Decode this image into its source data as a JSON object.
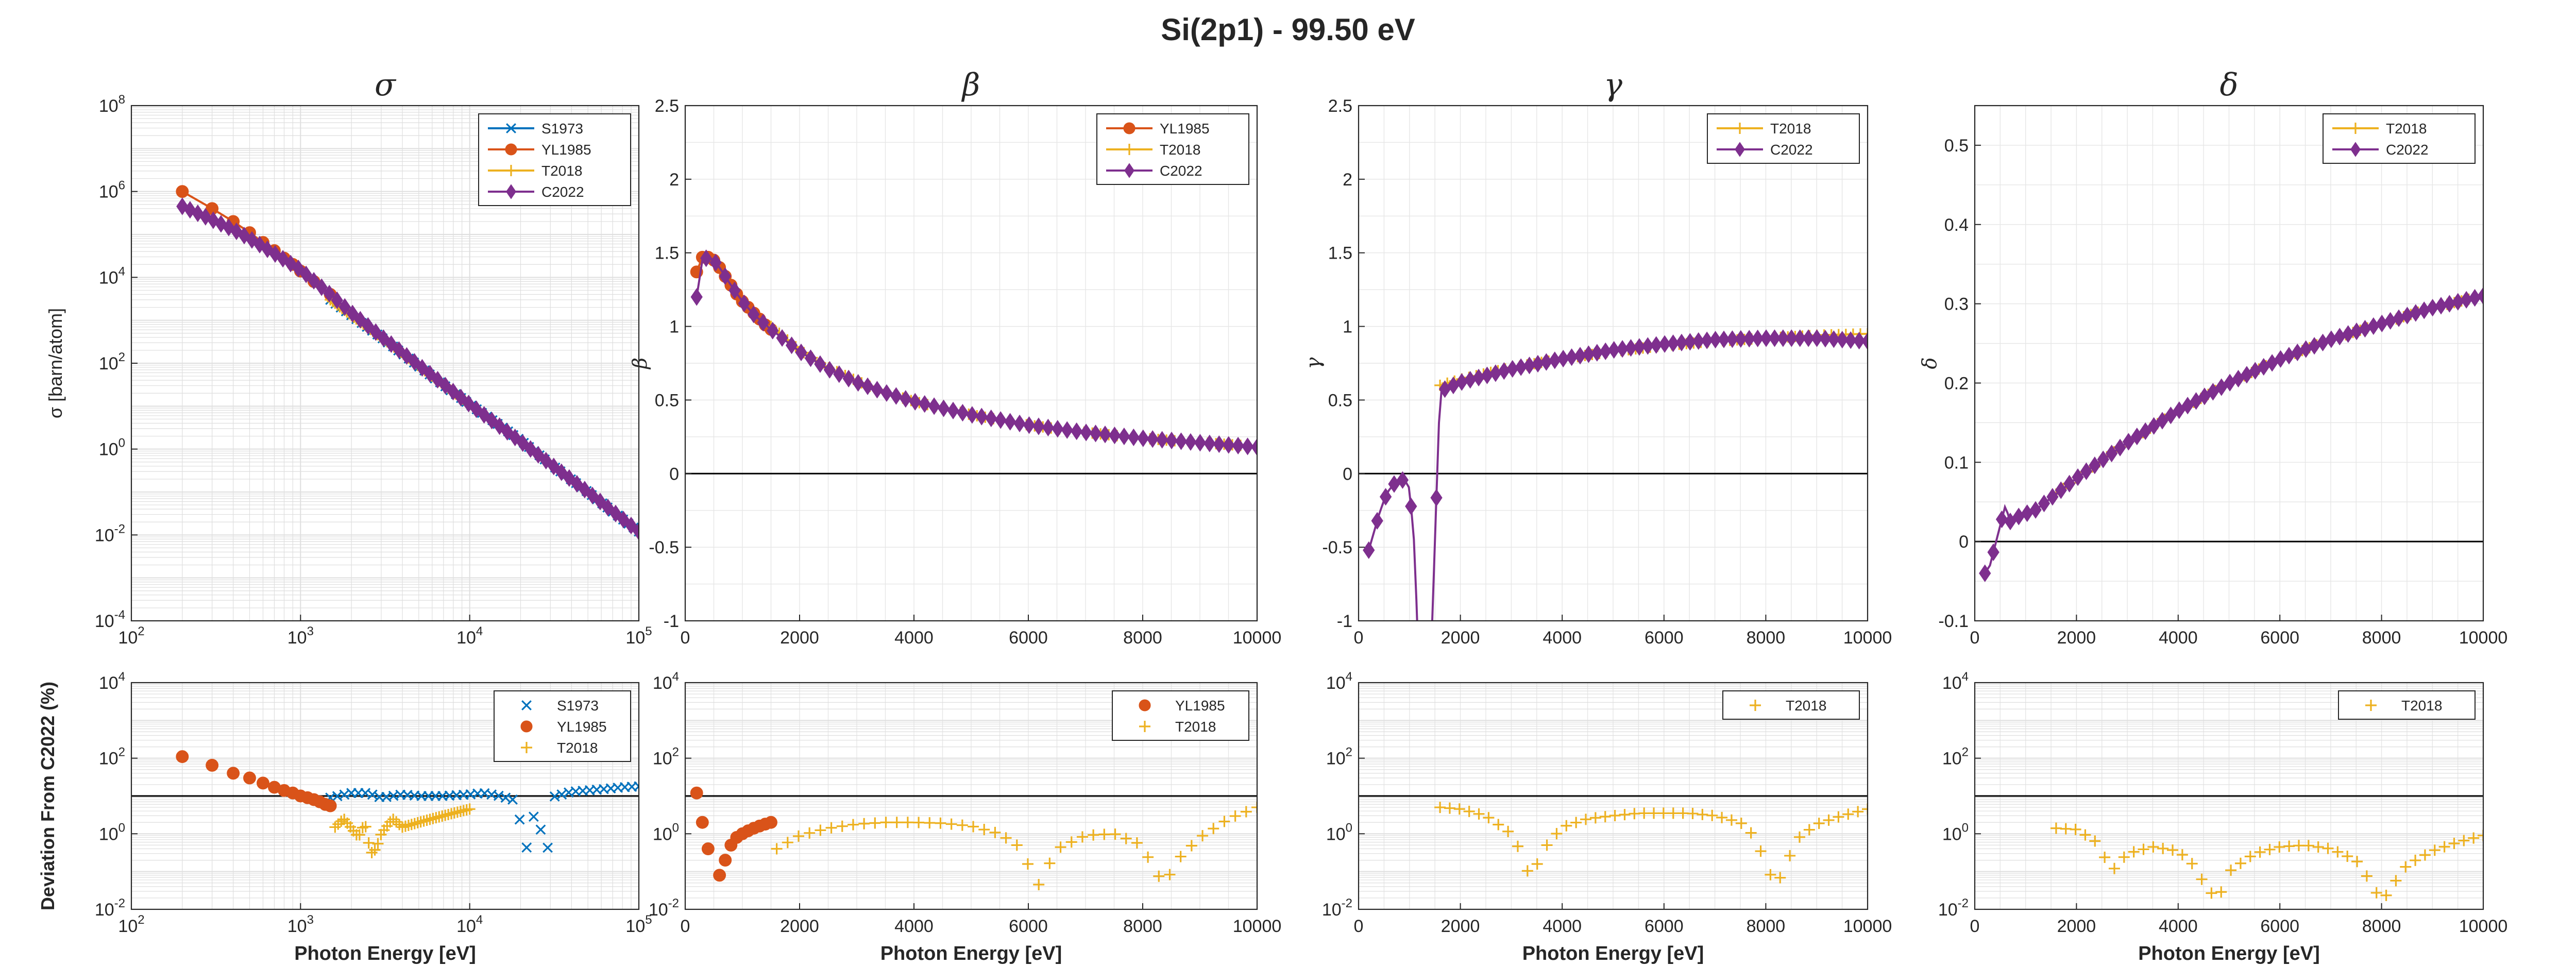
{
  "figure": {
    "title": "Si(2p1) - 99.50 eV",
    "x_label": "Photon Energy [eV]",
    "bottom_y_label": "Deviation From C2022 (%)",
    "colors": {
      "S1973": "#0072BD",
      "YL1985": "#D95319",
      "T2018": "#EDB120",
      "C2022": "#7E2F8E",
      "axis": "#262626",
      "zero_line": "#000000"
    }
  },
  "chart_data": [
    {
      "id": "sigma",
      "type": "line",
      "title": "σ",
      "ylabel": "σ [barn/atom]",
      "xscale": "log",
      "yscale": "log",
      "xlim": [
        100,
        100000
      ],
      "ylim": [
        0.0001,
        100000000
      ],
      "xticks": [
        100,
        1000,
        10000,
        100000
      ],
      "xtick_labels": [
        "10^2",
        "10^3",
        "10^4",
        "10^5"
      ],
      "yticks": [
        0.0001,
        0.01,
        1,
        100,
        10000,
        1000000,
        100000000
      ],
      "ytick_labels": [
        "10^-4",
        "10^-2",
        "10^0",
        "10^2",
        "10^4",
        "10^6",
        "10^8"
      ],
      "grid": true,
      "legend": "top-right",
      "zero_line": false,
      "series": [
        {
          "name": "S1973",
          "marker": "x",
          "x": [
            1500,
            2000,
            3000,
            5000,
            8000,
            10000,
            15000,
            20000,
            30000,
            50000,
            70000,
            100000
          ],
          "y": [
            3000,
            1300,
            400,
            85,
            21,
            11,
            3.6,
            1.6,
            0.45,
            0.1,
            0.035,
            0.012
          ],
          "dense_markers": true
        },
        {
          "name": "YL1985",
          "marker": "o",
          "x": [
            200,
            300,
            400,
            500,
            600,
            700,
            800,
            900,
            1000,
            1200,
            1500
          ],
          "y": [
            1000000,
            400000,
            200000,
            110000,
            65000,
            42000,
            28000,
            20000,
            14000,
            8000,
            4000
          ]
        },
        {
          "name": "T2018",
          "marker": "+",
          "x": [
            1500,
            2000,
            3000,
            4000,
            5000,
            6000,
            7000,
            8000,
            9000,
            10000
          ],
          "y": [
            3000,
            1300,
            400,
            170,
            85,
            50,
            32,
            21,
            15,
            11
          ],
          "dense_markers": true
        },
        {
          "name": "C2022",
          "marker": "diamond",
          "x": [
            200,
            300,
            400,
            500,
            600,
            700,
            800,
            1000,
            1500,
            2000,
            3000,
            5000,
            10000,
            20000,
            30000,
            50000,
            100000
          ],
          "y": [
            450000,
            220000,
            130000,
            80000,
            52000,
            36000,
            26000,
            15000,
            4000,
            1500,
            420,
            90,
            11,
            1.5,
            0.45,
            0.1,
            0.012
          ],
          "dense_markers": true
        }
      ]
    },
    {
      "id": "beta",
      "type": "line",
      "title": "β",
      "ylabel": "β",
      "xscale": "linear",
      "yscale": "linear",
      "xlim": [
        0,
        10000
      ],
      "ylim": [
        -1,
        2.5
      ],
      "xticks": [
        0,
        2000,
        4000,
        6000,
        8000,
        10000
      ],
      "xtick_labels": [
        "0",
        "2000",
        "4000",
        "6000",
        "8000",
        "10000"
      ],
      "yticks": [
        -1,
        -0.5,
        0,
        0.5,
        1,
        1.5,
        2,
        2.5
      ],
      "ytick_labels": [
        "-1",
        "-0.5",
        "0",
        "0.5",
        "1",
        "1.5",
        "2",
        "2.5"
      ],
      "grid": true,
      "legend": "top-right",
      "zero_line": true,
      "series": [
        {
          "name": "YL1985",
          "marker": "o",
          "x": [
            200,
            300,
            400,
            500,
            600,
            700,
            800,
            900,
            1000,
            1100,
            1200,
            1300,
            1400,
            1500
          ],
          "y": [
            1.37,
            1.47,
            1.47,
            1.45,
            1.4,
            1.34,
            1.28,
            1.22,
            1.17,
            1.13,
            1.09,
            1.05,
            1.01,
            0.98
          ]
        },
        {
          "name": "T2018",
          "marker": "+",
          "x": [
            1500,
            2000,
            2500,
            3000,
            3500,
            4000,
            5000,
            6000,
            7000,
            8000,
            9000,
            10000
          ],
          "y": [
            1.0,
            0.84,
            0.72,
            0.63,
            0.55,
            0.49,
            0.4,
            0.33,
            0.28,
            0.24,
            0.21,
            0.185
          ],
          "dense_markers": true
        },
        {
          "name": "C2022",
          "marker": "diamond",
          "x": [
            200,
            300,
            400,
            500,
            600,
            800,
            1000,
            1200,
            1500,
            2000,
            2500,
            3000,
            3500,
            4000,
            5000,
            6000,
            7000,
            8000,
            9000,
            10000
          ],
          "y": [
            1.2,
            1.45,
            1.47,
            1.45,
            1.4,
            1.28,
            1.17,
            1.08,
            0.98,
            0.83,
            0.71,
            0.62,
            0.55,
            0.49,
            0.4,
            0.33,
            0.28,
            0.24,
            0.21,
            0.18
          ],
          "dense_markers": true
        }
      ]
    },
    {
      "id": "gamma",
      "type": "line",
      "title": "γ",
      "ylabel": "γ",
      "xscale": "linear",
      "yscale": "linear",
      "xlim": [
        0,
        10000
      ],
      "ylim": [
        -1,
        2.5
      ],
      "xticks": [
        0,
        2000,
        4000,
        6000,
        8000,
        10000
      ],
      "xtick_labels": [
        "0",
        "2000",
        "4000",
        "6000",
        "8000",
        "10000"
      ],
      "yticks": [
        -1,
        -0.5,
        0,
        0.5,
        1,
        1.5,
        2,
        2.5
      ],
      "ytick_labels": [
        "-1",
        "-0.5",
        "0",
        "0.5",
        "1",
        "1.5",
        "2",
        "2.5"
      ],
      "grid": true,
      "legend": "top-right",
      "zero_line": true,
      "series": [
        {
          "name": "T2018",
          "marker": "+",
          "x": [
            1600,
            2000,
            3000,
            4000,
            5000,
            6000,
            7000,
            8000,
            9000,
            10000
          ],
          "y": [
            0.6,
            0.64,
            0.72,
            0.78,
            0.83,
            0.87,
            0.9,
            0.92,
            0.94,
            0.95
          ],
          "dense_markers": true
        },
        {
          "name": "C2022",
          "marker": "diamond",
          "x": [
            200,
            300,
            400,
            500,
            600,
            700,
            800,
            900,
            1000,
            1100,
            1200,
            1250,
            1600,
            2000,
            3000,
            4000,
            5000,
            6000,
            7000,
            8000,
            9000,
            10000
          ],
          "y": [
            -0.52,
            -0.4,
            -0.28,
            -0.18,
            -0.11,
            -0.07,
            -0.05,
            -0.04,
            -0.1,
            -0.5,
            -1.5,
            -3,
            0.56,
            0.62,
            0.71,
            0.78,
            0.84,
            0.88,
            0.91,
            0.92,
            0.92,
            0.9
          ],
          "dense_markers": true
        }
      ]
    },
    {
      "id": "delta",
      "type": "line",
      "title": "δ",
      "ylabel": "δ",
      "xscale": "linear",
      "yscale": "linear",
      "xlim": [
        0,
        10000
      ],
      "ylim": [
        -0.1,
        0.55
      ],
      "xticks": [
        0,
        2000,
        4000,
        6000,
        8000,
        10000
      ],
      "xtick_labels": [
        "0",
        "2000",
        "4000",
        "6000",
        "8000",
        "10000"
      ],
      "yticks": [
        -0.1,
        0,
        0.1,
        0.2,
        0.3,
        0.4,
        0.5
      ],
      "ytick_labels": [
        "-0.1",
        "0",
        "0.1",
        "0.2",
        "0.3",
        "0.4",
        "0.5"
      ],
      "grid": true,
      "legend": "top-right",
      "zero_line": true,
      "series": [
        {
          "name": "T2018",
          "marker": "+",
          "x": [
            1600,
            2000,
            3000,
            4000,
            5000,
            6000,
            7000,
            8000,
            9000,
            10000
          ],
          "y": [
            0.06,
            0.08,
            0.125,
            0.165,
            0.2,
            0.23,
            0.255,
            0.275,
            0.295,
            0.31
          ],
          "dense_markers": true
        },
        {
          "name": "C2022",
          "marker": "diamond",
          "x": [
            200,
            300,
            400,
            500,
            600,
            700,
            800,
            1000,
            1200,
            1600,
            2000,
            3000,
            4000,
            5000,
            6000,
            7000,
            8000,
            9000,
            10000
          ],
          "y": [
            -0.04,
            -0.03,
            -0.005,
            0.02,
            0.045,
            0.025,
            0.03,
            0.035,
            0.04,
            0.06,
            0.08,
            0.125,
            0.165,
            0.2,
            0.23,
            0.255,
            0.275,
            0.295,
            0.31
          ],
          "dense_markers": true
        }
      ]
    },
    {
      "id": "dev_sigma",
      "type": "scatter",
      "title": "",
      "ylabel": "Deviation From C2022 (%)",
      "xscale": "log",
      "yscale": "log",
      "xlim": [
        100,
        100000
      ],
      "ylim": [
        0.01,
        10000
      ],
      "xticks": [
        100,
        1000,
        10000,
        100000
      ],
      "xtick_labels": [
        "10^2",
        "10^3",
        "10^4",
        "10^5"
      ],
      "yticks": [
        0.01,
        1,
        100,
        10000
      ],
      "ytick_labels": [
        "10^-2",
        "10^0",
        "10^2",
        "10^4"
      ],
      "grid": true,
      "legend": "top-right",
      "ref_line": 10,
      "series": [
        {
          "name": "S1973",
          "marker": "x",
          "x": [
            1500,
            2000,
            2500,
            3000,
            4000,
            5000,
            7000,
            10000,
            12000,
            15000,
            18000,
            20000,
            21000,
            22000,
            24000,
            27000,
            28000,
            30000,
            40000,
            60000,
            80000,
            100000
          ],
          "y": [
            9,
            12,
            12,
            9,
            11,
            10,
            10,
            11,
            12,
            10,
            8,
            2,
            0.05,
            1,
            3,
            1,
            0.03,
            9,
            13,
            15,
            17,
            18
          ],
          "dense_markers": true
        },
        {
          "name": "YL1985",
          "marker": "o",
          "x": [
            200,
            300,
            400,
            500,
            600,
            700,
            800,
            900,
            1000,
            1100,
            1200,
            1300,
            1400,
            1500
          ],
          "y": [
            110,
            65,
            40,
            30,
            22,
            17,
            14,
            12,
            10,
            9,
            8,
            7,
            6,
            5.5
          ],
          "dense_markers": false
        },
        {
          "name": "T2018",
          "marker": "+",
          "x": [
            1600,
            1800,
            2000,
            2200,
            2400,
            2600,
            2800,
            3000,
            3500,
            4000,
            5000,
            6000,
            7000,
            8000,
            9000,
            10000
          ],
          "y": [
            1.5,
            2.5,
            1.4,
            0.8,
            2,
            0.3,
            0.4,
            1,
            2.5,
            1.5,
            2,
            2.5,
            3,
            3.5,
            4,
            4.5
          ],
          "dense_markers": true
        }
      ]
    },
    {
      "id": "dev_beta",
      "type": "scatter",
      "title": "",
      "ylabel": "",
      "xscale": "linear",
      "yscale": "log",
      "xlim": [
        0,
        10000
      ],
      "ylim": [
        0.01,
        10000
      ],
      "xticks": [
        0,
        2000,
        4000,
        6000,
        8000,
        10000
      ],
      "xtick_labels": [
        "0",
        "2000",
        "4000",
        "6000",
        "8000",
        "10000"
      ],
      "yticks": [
        0.01,
        1,
        100,
        10000
      ],
      "ytick_labels": [
        "10^-2",
        "10^0",
        "10^2",
        "10^4"
      ],
      "grid": true,
      "legend": "top-right",
      "ref_line": 10,
      "series": [
        {
          "name": "YL1985",
          "marker": "o",
          "x": [
            200,
            300,
            400,
            600,
            700,
            800,
            900,
            1000,
            1100,
            1200,
            1300,
            1400,
            1500
          ],
          "y": [
            12,
            2,
            0.4,
            0.08,
            0.2,
            0.5,
            0.8,
            1.0,
            1.2,
            1.4,
            1.6,
            1.8,
            2.0
          ],
          "dense_markers": false
        },
        {
          "name": "T2018",
          "marker": "+",
          "x": [
            1600,
            2000,
            2500,
            3000,
            3500,
            4000,
            4500,
            5000,
            5500,
            5800,
            6000,
            6200,
            6300,
            6500,
            7000,
            7500,
            8000,
            8200,
            8400,
            8600,
            9000,
            9500,
            10000
          ],
          "y": [
            0.4,
            0.9,
            1.4,
            1.8,
            2,
            2,
            1.9,
            1.6,
            1,
            0.5,
            0.15,
            0.04,
            0.1,
            0.4,
            0.9,
            1,
            0.5,
            0.1,
            0.05,
            0.2,
            0.8,
            2.5,
            5
          ],
          "dense_markers": true
        }
      ]
    },
    {
      "id": "dev_gamma",
      "type": "scatter",
      "title": "",
      "ylabel": "",
      "xscale": "linear",
      "yscale": "log",
      "xlim": [
        0,
        10000
      ],
      "ylim": [
        0.01,
        10000
      ],
      "xticks": [
        0,
        2000,
        4000,
        6000,
        8000,
        10000
      ],
      "xtick_labels": [
        "0",
        "2000",
        "4000",
        "6000",
        "8000",
        "10000"
      ],
      "yticks": [
        0.01,
        1,
        100,
        10000
      ],
      "ytick_labels": [
        "10^-2",
        "10^0",
        "10^2",
        "10^4"
      ],
      "grid": true,
      "legend": "top-right",
      "ref_line": 10,
      "series": [
        {
          "name": "T2018",
          "marker": "+",
          "x": [
            1600,
            2000,
            2500,
            3000,
            3200,
            3400,
            3500,
            3700,
            4000,
            4500,
            5000,
            5500,
            6000,
            6500,
            7000,
            7500,
            7800,
            8000,
            8200,
            8400,
            8600,
            9000,
            9500,
            10000
          ],
          "y": [
            5,
            4.5,
            3,
            1,
            0.3,
            0.05,
            0.15,
            0.5,
            1.5,
            2.5,
            3,
            3.5,
            3.5,
            3.5,
            3,
            2,
            0.8,
            0.15,
            0.04,
            0.15,
            0.7,
            1.8,
            3,
            4.5
          ],
          "dense_markers": true
        }
      ]
    },
    {
      "id": "dev_delta",
      "type": "scatter",
      "title": "",
      "ylabel": "",
      "xscale": "linear",
      "yscale": "log",
      "xlim": [
        0,
        10000
      ],
      "ylim": [
        0.01,
        10000
      ],
      "xticks": [
        0,
        2000,
        4000,
        6000,
        8000,
        10000
      ],
      "xtick_labels": [
        "0",
        "2000",
        "4000",
        "6000",
        "8000",
        "10000"
      ],
      "yticks": [
        0.01,
        1,
        100,
        10000
      ],
      "ytick_labels": [
        "10^-2",
        "10^0",
        "10^2",
        "10^4"
      ],
      "grid": true,
      "legend": "top-right",
      "ref_line": 10,
      "series": [
        {
          "name": "T2018",
          "marker": "+",
          "x": [
            1600,
            2000,
            2400,
            2700,
            2800,
            3000,
            3500,
            4000,
            4300,
            4600,
            4800,
            5000,
            5500,
            6000,
            6500,
            7000,
            7500,
            7800,
            8000,
            8200,
            8500,
            9000,
            9500,
            10000
          ],
          "y": [
            1.4,
            1.3,
            0.6,
            0.1,
            0.15,
            0.3,
            0.45,
            0.35,
            0.15,
            0.03,
            0.02,
            0.1,
            0.3,
            0.45,
            0.5,
            0.4,
            0.2,
            0.05,
            0.015,
            0.04,
            0.15,
            0.35,
            0.6,
            0.9
          ],
          "dense_markers": true
        }
      ]
    }
  ]
}
